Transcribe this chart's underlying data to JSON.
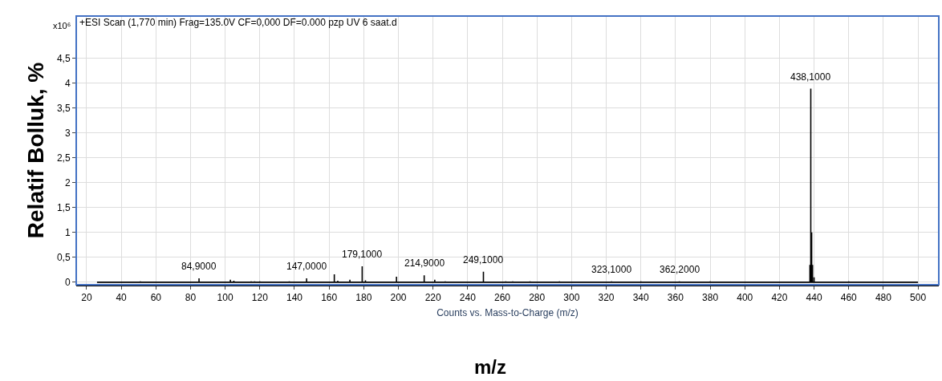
{
  "chart_data": {
    "type": "line",
    "title": "+ESI Scan (1,770 min) Frag=135.0V CF=0,000 DF=0.000 pzp UV 6 saat.d",
    "xlabel": "Counts vs. Mass-to-Charge (m/z)",
    "ylabel": "Relatif Bolluk, %",
    "annotations": [
      "x10⁶",
      "m/z",
      {
        "text": "84,9000",
        "x": 84.9,
        "y": 0.08
      },
      {
        "text": "147,0000",
        "x": 147.0,
        "y": 0.08
      },
      {
        "text": "179,1000",
        "x": 179.1,
        "y": 0.32
      },
      {
        "text": "214,9000",
        "x": 214.9,
        "y": 0.14
      },
      {
        "text": "249,1000",
        "x": 249.1,
        "y": 0.21
      },
      {
        "text": "323,1000",
        "x": 323.1,
        "y": 0.02
      },
      {
        "text": "362,2000",
        "x": 362.2,
        "y": 0.02
      },
      {
        "text": "438,1000",
        "x": 438.1,
        "y": 3.89
      }
    ],
    "series": [
      {
        "color": "#000000",
        "x": [
          26,
          51,
          51,
          51,
          84.9,
          84.9,
          84.9,
          103,
          103,
          103,
          105,
          105,
          105,
          115,
          115,
          115,
          117,
          117,
          117,
          120,
          120,
          120,
          137,
          137,
          137,
          147,
          147,
          147,
          163,
          163,
          163,
          165,
          165,
          165,
          172,
          172,
          172,
          179.1,
          179.1,
          179.1,
          181,
          181,
          181,
          198.9,
          198.9,
          198.9,
          214.9,
          214.9,
          214.9,
          221,
          221,
          221,
          227,
          227,
          227,
          249.1,
          249.1,
          249.1,
          262,
          262,
          262,
          266,
          266,
          266,
          276,
          276,
          276,
          293,
          293,
          293,
          323.1,
          323.1,
          323.1,
          340,
          340,
          340,
          362.2,
          362.2,
          362.2,
          380,
          380,
          380,
          437.6,
          437.6,
          437.6,
          438.1,
          438.1,
          438.1,
          438.6,
          438.6,
          438.6,
          439.1,
          439.1,
          439.1,
          440,
          440,
          440,
          460,
          460,
          460,
          500
        ],
        "values": [
          0,
          0,
          0.02,
          0,
          0,
          0.08,
          0,
          0,
          0.05,
          0,
          0,
          0.03,
          0,
          0,
          0.02,
          0,
          0,
          0.02,
          0,
          0,
          0.02,
          0,
          0,
          0.02,
          0,
          0,
          0.08,
          0,
          0,
          0.16,
          0,
          0,
          0.03,
          0,
          0,
          0.05,
          0,
          0,
          0.32,
          0,
          0,
          0.04,
          0,
          0,
          0.11,
          0,
          0,
          0.14,
          0,
          0,
          0.05,
          0,
          0,
          0.02,
          0,
          0,
          0.21,
          0,
          0,
          0.02,
          0,
          0,
          0.02,
          0,
          0,
          0.02,
          0,
          0,
          0.02,
          0,
          0,
          0.02,
          0,
          0,
          0.02,
          0,
          0,
          0.02,
          0,
          0,
          0.02,
          0,
          0,
          0.35,
          0,
          0,
          3.89,
          0,
          0,
          1.0,
          0,
          0,
          0.35,
          0,
          0,
          0.1,
          0,
          0,
          0.02,
          0,
          0
        ]
      }
    ],
    "xlim": [
      14,
      512
    ],
    "ylim": [
      -0.05,
      5.35
    ],
    "xticks": [
      20,
      40,
      60,
      80,
      100,
      120,
      140,
      160,
      180,
      200,
      220,
      240,
      260,
      280,
      300,
      320,
      340,
      360,
      380,
      400,
      420,
      440,
      460,
      480,
      500
    ],
    "yticks": [
      0,
      {
        "value": 0.5,
        "label": "0,5"
      },
      1,
      {
        "value": 1.5,
        "label": "1,5"
      },
      2,
      {
        "value": 2.5,
        "label": "2,5"
      },
      3,
      {
        "value": 3.5,
        "label": "3,5"
      },
      4,
      {
        "value": 4.5,
        "label": "4,5"
      }
    ],
    "grid": true,
    "marker": "none",
    "line_style": "solid"
  }
}
